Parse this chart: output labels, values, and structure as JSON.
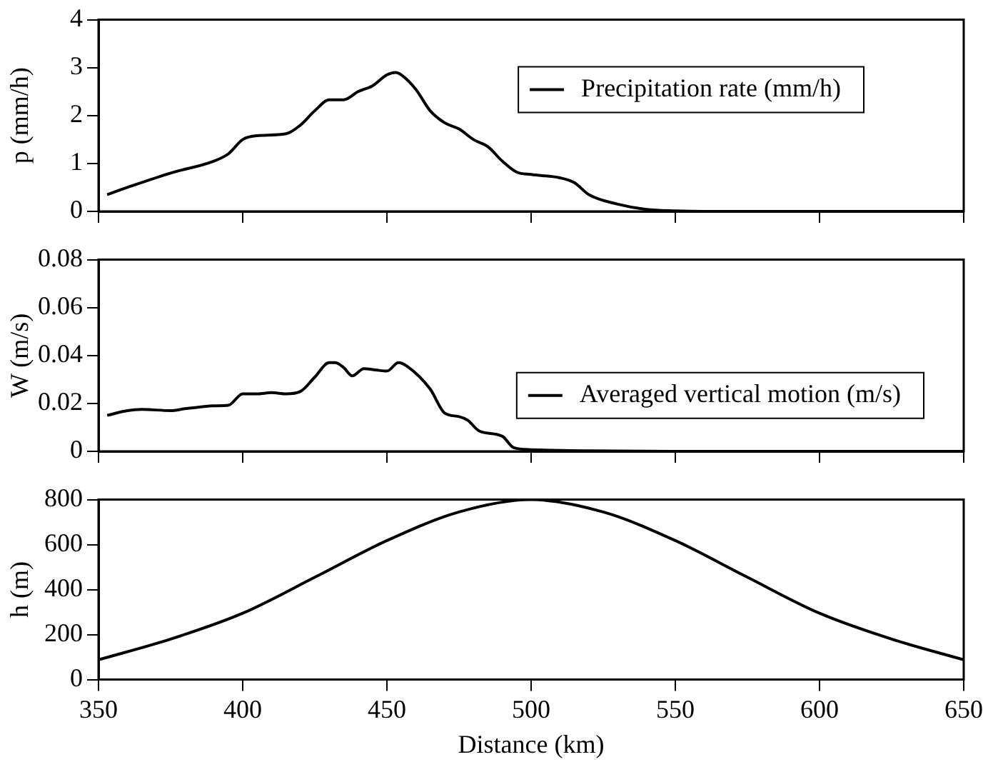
{
  "chart_data": [
    {
      "type": "line",
      "ylabel": "p (mm/h)",
      "xlim": [
        350,
        650
      ],
      "xticks": [
        350,
        400,
        450,
        500,
        550,
        600,
        650
      ],
      "ylim": [
        0,
        4
      ],
      "yticks": [
        0,
        1,
        2,
        3,
        4
      ],
      "tick_labels": "y",
      "legend": "top right",
      "grid": false,
      "marker": "none",
      "line_style": "solid",
      "series": [
        {
          "name": "Precipitation rate (mm/h)",
          "color": "#000000",
          "x": [
            353,
            360,
            375,
            390,
            395,
            400,
            405,
            415,
            420,
            425,
            430,
            435,
            440,
            445,
            450,
            453,
            455,
            460,
            465,
            470,
            475,
            480,
            485,
            490,
            495,
            500,
            510,
            515,
            520,
            530,
            540,
            550,
            560,
            650
          ],
          "values": [
            0.35,
            0.5,
            0.8,
            1.05,
            1.2,
            1.5,
            1.58,
            1.62,
            1.8,
            2.1,
            2.33,
            2.33,
            2.5,
            2.62,
            2.85,
            2.9,
            2.85,
            2.55,
            2.1,
            1.85,
            1.72,
            1.5,
            1.35,
            1.05,
            0.82,
            0.77,
            0.7,
            0.6,
            0.35,
            0.15,
            0.04,
            0.01,
            0,
            0
          ]
        }
      ]
    },
    {
      "type": "line",
      "ylabel": "W (m/s)",
      "xlim": [
        350,
        650
      ],
      "xticks": [
        350,
        400,
        450,
        500,
        550,
        600,
        650
      ],
      "ylim": [
        0,
        0.08
      ],
      "yticks": [
        0,
        0.02,
        0.04,
        0.06,
        0.08
      ],
      "tick_labels": "y",
      "legend": "right",
      "grid": false,
      "marker": "none",
      "line_style": "solid",
      "series": [
        {
          "name": "Averaged vertical motion (m/s)",
          "color": "#000000",
          "x": [
            353,
            360,
            365,
            375,
            380,
            385,
            390,
            395,
            400,
            405,
            410,
            415,
            420,
            425,
            430,
            432,
            435,
            438,
            442,
            446,
            450,
            454,
            457,
            465,
            470,
            475,
            478,
            482,
            490,
            494,
            500,
            520,
            550,
            650
          ],
          "values": [
            0.015,
            0.017,
            0.0175,
            0.017,
            0.0178,
            0.0185,
            0.019,
            0.0192,
            0.024,
            0.024,
            0.0245,
            0.024,
            0.025,
            0.031,
            0.037,
            0.037,
            0.035,
            0.0315,
            0.0345,
            0.034,
            0.0335,
            0.037,
            0.0355,
            0.026,
            0.016,
            0.0145,
            0.013,
            0.0085,
            0.0063,
            0.0015,
            0.0007,
            0.0002,
            0,
            0
          ]
        }
      ]
    },
    {
      "type": "line",
      "xlabel": "Distance (km)",
      "ylabel": "h (m)",
      "xlim": [
        350,
        650
      ],
      "xticks": [
        350,
        400,
        450,
        500,
        550,
        600,
        650
      ],
      "ylim": [
        0,
        800
      ],
      "yticks": [
        0,
        200,
        400,
        600,
        800
      ],
      "grid": false,
      "marker": "none",
      "line_style": "solid",
      "series": [
        {
          "color": "#000000",
          "x": [
            350,
            375,
            400,
            425,
            450,
            475,
            500,
            525,
            550,
            575,
            600,
            625,
            650
          ],
          "values": [
            88,
            180,
            295,
            455,
            618,
            745,
            800,
            745,
            618,
            455,
            295,
            180,
            88
          ]
        }
      ]
    }
  ]
}
